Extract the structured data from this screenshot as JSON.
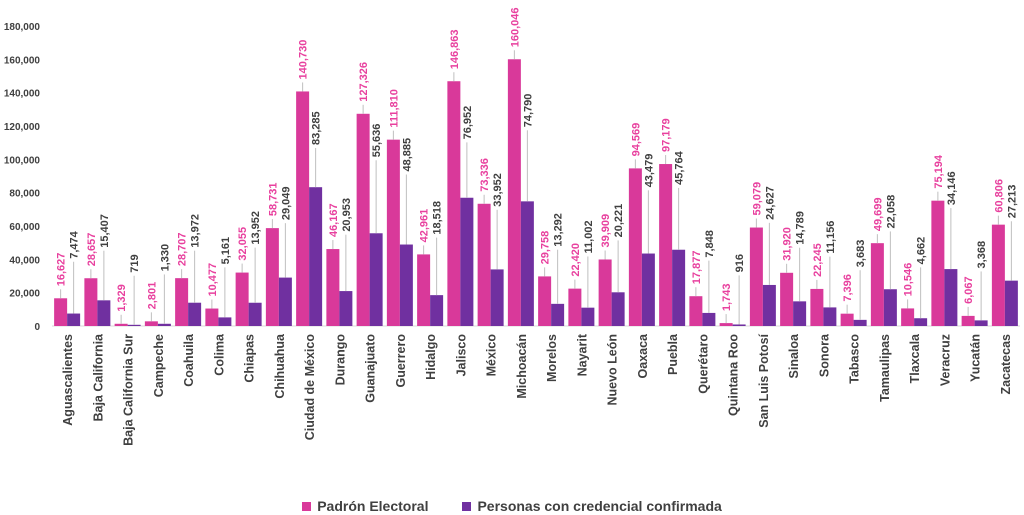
{
  "chart_data": {
    "type": "bar",
    "title": "",
    "xlabel": "",
    "ylabel": "",
    "ylim": [
      0,
      180000
    ],
    "yticks": [
      "0",
      "20,000",
      "40,000",
      "60,000",
      "80,000",
      "100,000",
      "120,000",
      "140,000",
      "160,000",
      "180,000"
    ],
    "grid": false,
    "legend_position": "bottom",
    "categories": [
      "Aguascalientes",
      "Baja California",
      "Baja California Sur",
      "Campeche",
      "Coahuila",
      "Colima",
      "Chiapas",
      "Chihuahua",
      "Ciudad de México",
      "Durango",
      "Guanajuato",
      "Guerrero",
      "Hidalgo",
      "Jalisco",
      "México",
      "Michoacán",
      "Morelos",
      "Nayarit",
      "Nuevo León",
      "Oaxaca",
      "Puebla",
      "Querétaro",
      "Quintana Roo",
      "San Luis Potosí",
      "Sinaloa",
      "Sonora",
      "Tabasco",
      "Tamaulipas",
      "Tlaxcala",
      "Veracruz",
      "Yucatán",
      "Zacatecas"
    ],
    "series": [
      {
        "name": "Padrón Electoral",
        "color": "#d9399a",
        "label_color": "#e8409e",
        "values": [
          16627,
          28657,
          1329,
          2801,
          28707,
          10477,
          32055,
          58731,
          140730,
          46167,
          127326,
          111810,
          42961,
          146863,
          73336,
          160046,
          29758,
          22420,
          39909,
          94569,
          97179,
          17877,
          1743,
          59079,
          31920,
          22245,
          7396,
          49699,
          10546,
          75194,
          6067,
          60806
        ]
      },
      {
        "name": "Personas con credencial confirmada",
        "color": "#7030a0",
        "label_color": "#404040",
        "values": [
          7474,
          15407,
          719,
          1330,
          13972,
          5161,
          13952,
          29049,
          83285,
          20953,
          55636,
          48885,
          18518,
          76952,
          33952,
          74790,
          13292,
          11002,
          20221,
          43479,
          45764,
          7848,
          916,
          24627,
          14789,
          11156,
          3683,
          22058,
          4662,
          34146,
          3368,
          27213
        ]
      }
    ]
  }
}
